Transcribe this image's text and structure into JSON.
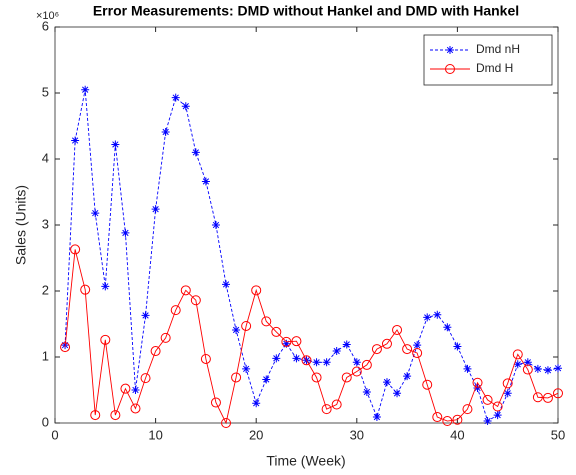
{
  "chart_data": {
    "type": "line",
    "title": "Error Measurements: DMD without Hankel and DMD with Hankel",
    "y_multiplier": "×10⁶",
    "x_label": "Time (Week)",
    "y_label": "Sales (Units)",
    "x": [
      1,
      2,
      3,
      4,
      5,
      6,
      7,
      8,
      9,
      10,
      11,
      12,
      13,
      14,
      15,
      16,
      17,
      18,
      19,
      20,
      21,
      22,
      23,
      24,
      25,
      26,
      27,
      28,
      29,
      30,
      31,
      32,
      33,
      34,
      35,
      36,
      37,
      38,
      39,
      40,
      41,
      42,
      43,
      44,
      45,
      46,
      47,
      48,
      49,
      50
    ],
    "series": [
      {
        "name": "Dmd nH",
        "color": "#0000ff",
        "marker": "asterisk",
        "dash": "dashed",
        "values": [
          1.18,
          4.28,
          5.05,
          3.18,
          2.07,
          4.22,
          2.88,
          0.5,
          1.63,
          3.24,
          4.41,
          4.93,
          4.8,
          4.1,
          3.66,
          3.0,
          2.1,
          1.41,
          0.82,
          0.3,
          0.66,
          0.98,
          1.2,
          0.98,
          0.95,
          0.92,
          0.92,
          1.09,
          1.19,
          0.92,
          0.47,
          0.09,
          0.62,
          0.45,
          0.71,
          1.18,
          1.6,
          1.64,
          1.45,
          1.16,
          0.82,
          0.53,
          0.03,
          0.12,
          0.45,
          0.89,
          0.92,
          0.82,
          0.8,
          0.83
        ]
      },
      {
        "name": "Dmd H",
        "color": "#ff0000",
        "marker": "circle",
        "dash": "solid",
        "values": [
          1.15,
          2.63,
          2.02,
          0.12,
          1.26,
          0.12,
          0.52,
          0.22,
          0.68,
          1.09,
          1.29,
          1.71,
          2.01,
          1.86,
          0.97,
          0.31,
          0.0,
          0.69,
          1.47,
          2.01,
          1.54,
          1.38,
          1.23,
          1.24,
          0.95,
          0.69,
          0.21,
          0.28,
          0.69,
          0.78,
          0.88,
          1.12,
          1.2,
          1.41,
          1.12,
          1.06,
          0.58,
          0.09,
          0.03,
          0.05,
          0.21,
          0.61,
          0.35,
          0.25,
          0.6,
          1.04,
          0.81,
          0.39,
          0.38,
          0.45
        ]
      }
    ],
    "xlim": [
      0,
      50
    ],
    "xticks": [
      0,
      10,
      20,
      30,
      40,
      50
    ],
    "ylim": [
      0,
      6
    ],
    "yticks": [
      0,
      1,
      2,
      3,
      4,
      5,
      6
    ],
    "legend": "top-right",
    "grid": false
  }
}
